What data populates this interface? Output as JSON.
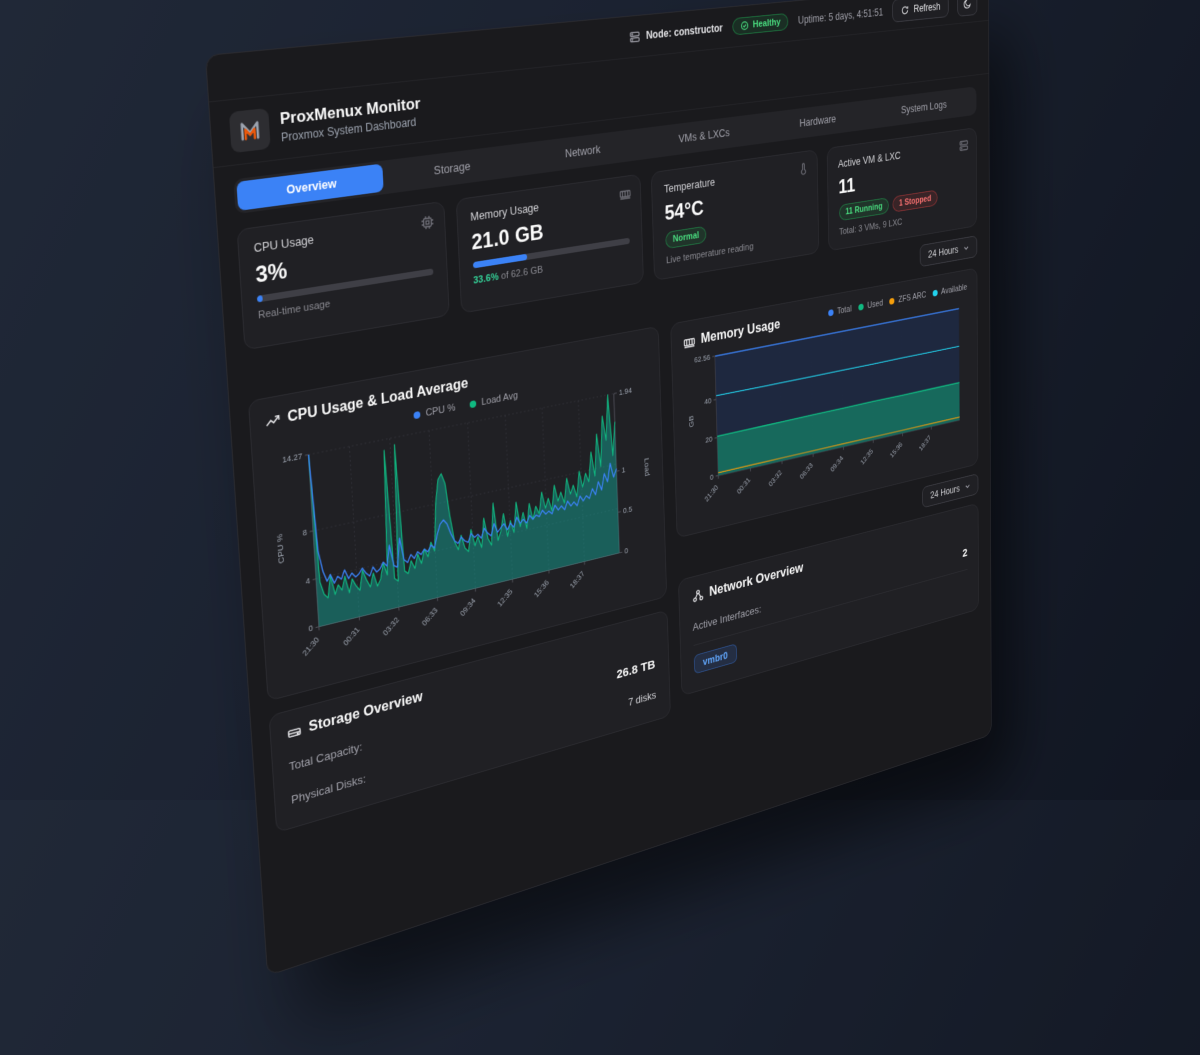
{
  "topbar": {
    "node_label": "Node: constructor",
    "health_badge": "Healthy",
    "uptime": "Uptime: 5 days, 4:51:51",
    "refresh_label": "Refresh"
  },
  "header": {
    "title": "ProxMenux Monitor",
    "subtitle": "Proxmox System Dashboard"
  },
  "tabs": {
    "items": [
      "Overview",
      "Storage",
      "Network",
      "VMs & LXCs",
      "Hardware",
      "System Logs"
    ],
    "active_index": 0
  },
  "time_range": {
    "label": "24 Hours"
  },
  "stats": {
    "cpu": {
      "label": "CPU Usage",
      "value": "3%",
      "percent": 3,
      "subtitle": "Real-time usage"
    },
    "memory": {
      "label": "Memory Usage",
      "value": "21.0 GB",
      "percent": 33.6,
      "highlight": "33.6%",
      "of_text": " of 62.6 GB"
    },
    "temperature": {
      "label": "Temperature",
      "value": "54°C",
      "badge": "Normal",
      "subtitle": "Live temperature reading"
    },
    "vms": {
      "label": "Active VM & LXC",
      "value": "11",
      "running_badge": "11 Running",
      "stopped_badge": "1 Stopped",
      "subtitle": "Total: 3 VMs, 9 LXC"
    }
  },
  "storage": {
    "title": "Storage Overview",
    "rows": [
      {
        "label": "Total Capacity:",
        "value": "26.8 TB",
        "emphasis": "strong"
      },
      {
        "label": "Physical Disks:",
        "value": "7 disks",
        "emphasis": "muted"
      }
    ]
  },
  "network": {
    "title": "Network Overview",
    "rows": [
      {
        "label": "Active Interfaces:",
        "value": "2",
        "emphasis": "strong"
      }
    ],
    "interfaces": [
      "vmbr0"
    ]
  },
  "colors": {
    "accent": "#3b82f6",
    "green": "#22c55e",
    "red": "#ef4444",
    "logo_orange": "#ea580c"
  },
  "chart_data": [
    {
      "type": "line",
      "title": "CPU Usage & Load Average",
      "legend": [
        {
          "name": "CPU %",
          "color": "#3b82f6"
        },
        {
          "name": "Load Avg",
          "color": "#10b981"
        }
      ],
      "x_labels": [
        "21:30",
        "00:31",
        "03:32",
        "06:33",
        "09:34",
        "12:35",
        "15:36",
        "18:37"
      ],
      "left_axis": {
        "label": "CPU %",
        "max": 14.27,
        "ticks": [
          0,
          4,
          8,
          14.27
        ]
      },
      "right_axis": {
        "label": "Load",
        "max": 1.94,
        "ticks": [
          0,
          0.5,
          1,
          1.94
        ]
      },
      "series": [
        {
          "name": "Load Avg",
          "axis": "right",
          "color": "#10b981",
          "fill": "rgba(20,184,166,0.42)",
          "width": 1.2,
          "values": [
            1.94,
            0.5,
            0.35,
            0.3,
            0.55,
            0.32,
            0.42,
            0.35,
            0.5,
            0.3,
            0.45,
            0.36,
            0.3,
            0.52,
            0.4,
            0.31,
            0.46,
            0.3,
            0.37,
            0.55,
            0.4,
            1.82,
            0.34,
            0.3,
            1.86,
            0.4,
            0.36,
            0.5,
            0.4,
            0.56,
            0.44,
            0.6,
            0.5,
            0.66,
            0.55,
            1.1,
            1.36,
            1.42,
            1.3,
            0.9,
            0.6,
            0.5,
            0.66,
            0.5,
            0.45,
            0.7,
            0.5,
            0.6,
            0.46,
            0.8,
            0.55,
            0.46,
            0.95,
            0.5,
            0.6,
            0.8,
            0.52,
            0.7,
            0.55,
            0.9,
            0.6,
            0.76,
            0.56,
            0.85,
            0.65,
            0.8,
            0.7,
            0.95,
            0.75,
            0.86,
            0.7,
            1.0,
            0.8,
            0.9,
            0.76,
            1.05,
            0.85,
            0.95,
            0.8,
            1.1,
            0.9,
            1.06,
            0.95,
            1.3,
            1.0,
            1.5,
            1.1,
            1.7,
            1.4,
            1.94,
            1.2,
            1.6
          ]
        },
        {
          "name": "CPU %",
          "axis": "left",
          "color": "#3b82f6",
          "width": 1.4,
          "values": [
            14.27,
            6.2,
            4.5,
            3.6,
            4.1,
            3.3,
            3.8,
            3.5,
            4.2,
            3.4,
            3.8,
            3.4,
            3.6,
            4.0,
            3.5,
            3.2,
            3.9,
            3.4,
            3.6,
            4.1,
            3.7,
            5.4,
            3.6,
            3.4,
            5.8,
            3.9,
            3.6,
            4.2,
            3.8,
            4.3,
            4.0,
            4.4,
            4.1,
            4.6,
            4.3,
            5.4,
            6.2,
            6.5,
            6.1,
            5.2,
            4.5,
            4.2,
            4.7,
            4.3,
            4.1,
            4.8,
            4.4,
            4.6,
            4.2,
            5.0,
            4.5,
            4.2,
            5.2,
            4.4,
            4.7,
            5.0,
            4.4,
            4.9,
            4.5,
            5.3,
            4.7,
            5.0,
            4.6,
            5.2,
            4.8,
            5.1,
            4.9,
            5.4,
            5.0,
            5.2,
            4.9,
            5.6,
            5.1,
            5.4,
            5.0,
            5.7,
            5.2,
            5.5,
            5.1,
            5.9,
            5.4,
            5.8,
            5.5,
            6.3,
            5.7,
            6.8,
            6.0,
            7.4,
            6.6,
            8.2,
            6.9,
            7.6
          ]
        }
      ]
    },
    {
      "type": "area",
      "title": "Memory Usage",
      "legend": [
        {
          "name": "Total",
          "color": "#3b82f6"
        },
        {
          "name": "Used",
          "color": "#10b981"
        },
        {
          "name": "ZFS ARC",
          "color": "#f59e0b"
        },
        {
          "name": "Available",
          "color": "#22d3ee"
        }
      ],
      "x_labels": [
        "21:30",
        "00:31",
        "03:32",
        "06:33",
        "09:34",
        "12:35",
        "15:36",
        "18:37"
      ],
      "left_axis": {
        "label": "GB",
        "max": 62.56,
        "ticks": [
          0,
          20,
          40,
          62.56
        ]
      },
      "series": [
        {
          "name": "Total",
          "color": "#3b82f6",
          "fill": "rgba(30,41,66,0.9)",
          "width": 1.6,
          "values": [
            62.56,
            62.56,
            62.56,
            62.56,
            62.56,
            62.56,
            62.56,
            62.56,
            62.56
          ]
        },
        {
          "name": "Used",
          "color": "#10b981",
          "fill": "rgba(16,185,129,0.45)",
          "width": 1.6,
          "values": [
            20.7,
            20.8,
            20.9,
            21.0,
            21.0,
            21.1,
            21.0,
            21.05,
            21.1
          ]
        },
        {
          "name": "Available",
          "color": "#22d3ee",
          "width": 1.2,
          "values": [
            41.9,
            41.8,
            41.7,
            41.6,
            41.6,
            41.5,
            41.6,
            41.5,
            41.5
          ]
        },
        {
          "name": "ZFS ARC",
          "color": "#f59e0b",
          "width": 1.2,
          "values": [
            1.5,
            1.55,
            1.6,
            1.6,
            1.65,
            1.6,
            1.6,
            1.65,
            1.7
          ]
        }
      ]
    }
  ]
}
